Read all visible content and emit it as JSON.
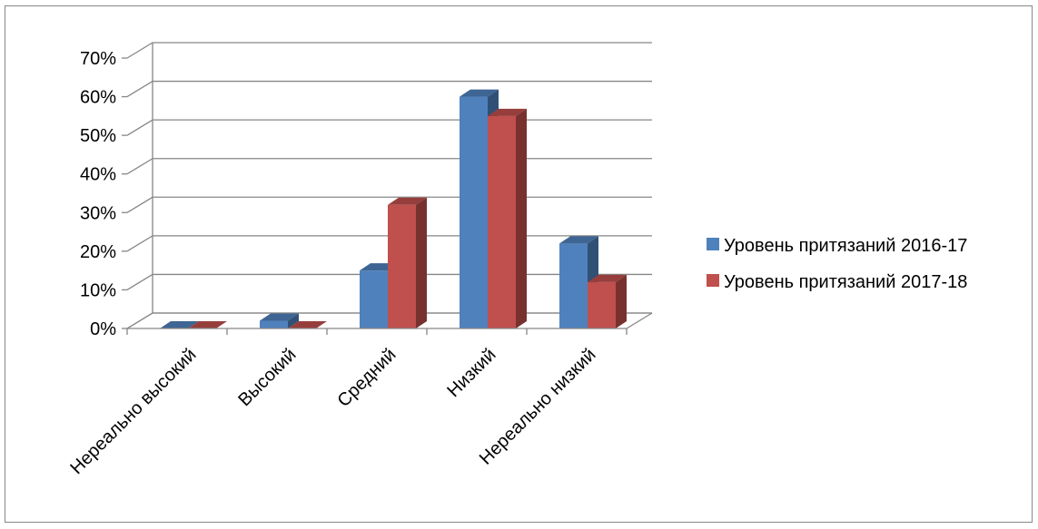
{
  "chart_data": {
    "type": "bar",
    "style": "3d-clustered-column",
    "categories": [
      "Нереально высокий",
      "Высокий",
      "Средний",
      "Низкий",
      "Нереально низкий"
    ],
    "series": [
      {
        "name": "Уровень притязаний 2016-17",
        "color": "#4F81BD",
        "values": [
          0,
          2,
          15,
          60,
          22
        ]
      },
      {
        "name": "Уровень притязаний 2017-18",
        "color": "#C0504D",
        "values": [
          0,
          0,
          32,
          55,
          12
        ]
      }
    ],
    "y_ticks": [
      "0%",
      "10%",
      "20%",
      "30%",
      "40%",
      "50%",
      "60%",
      "70%"
    ],
    "ylim": [
      0,
      70
    ],
    "y_unit": "%",
    "grid": true,
    "legend_position": "right"
  }
}
